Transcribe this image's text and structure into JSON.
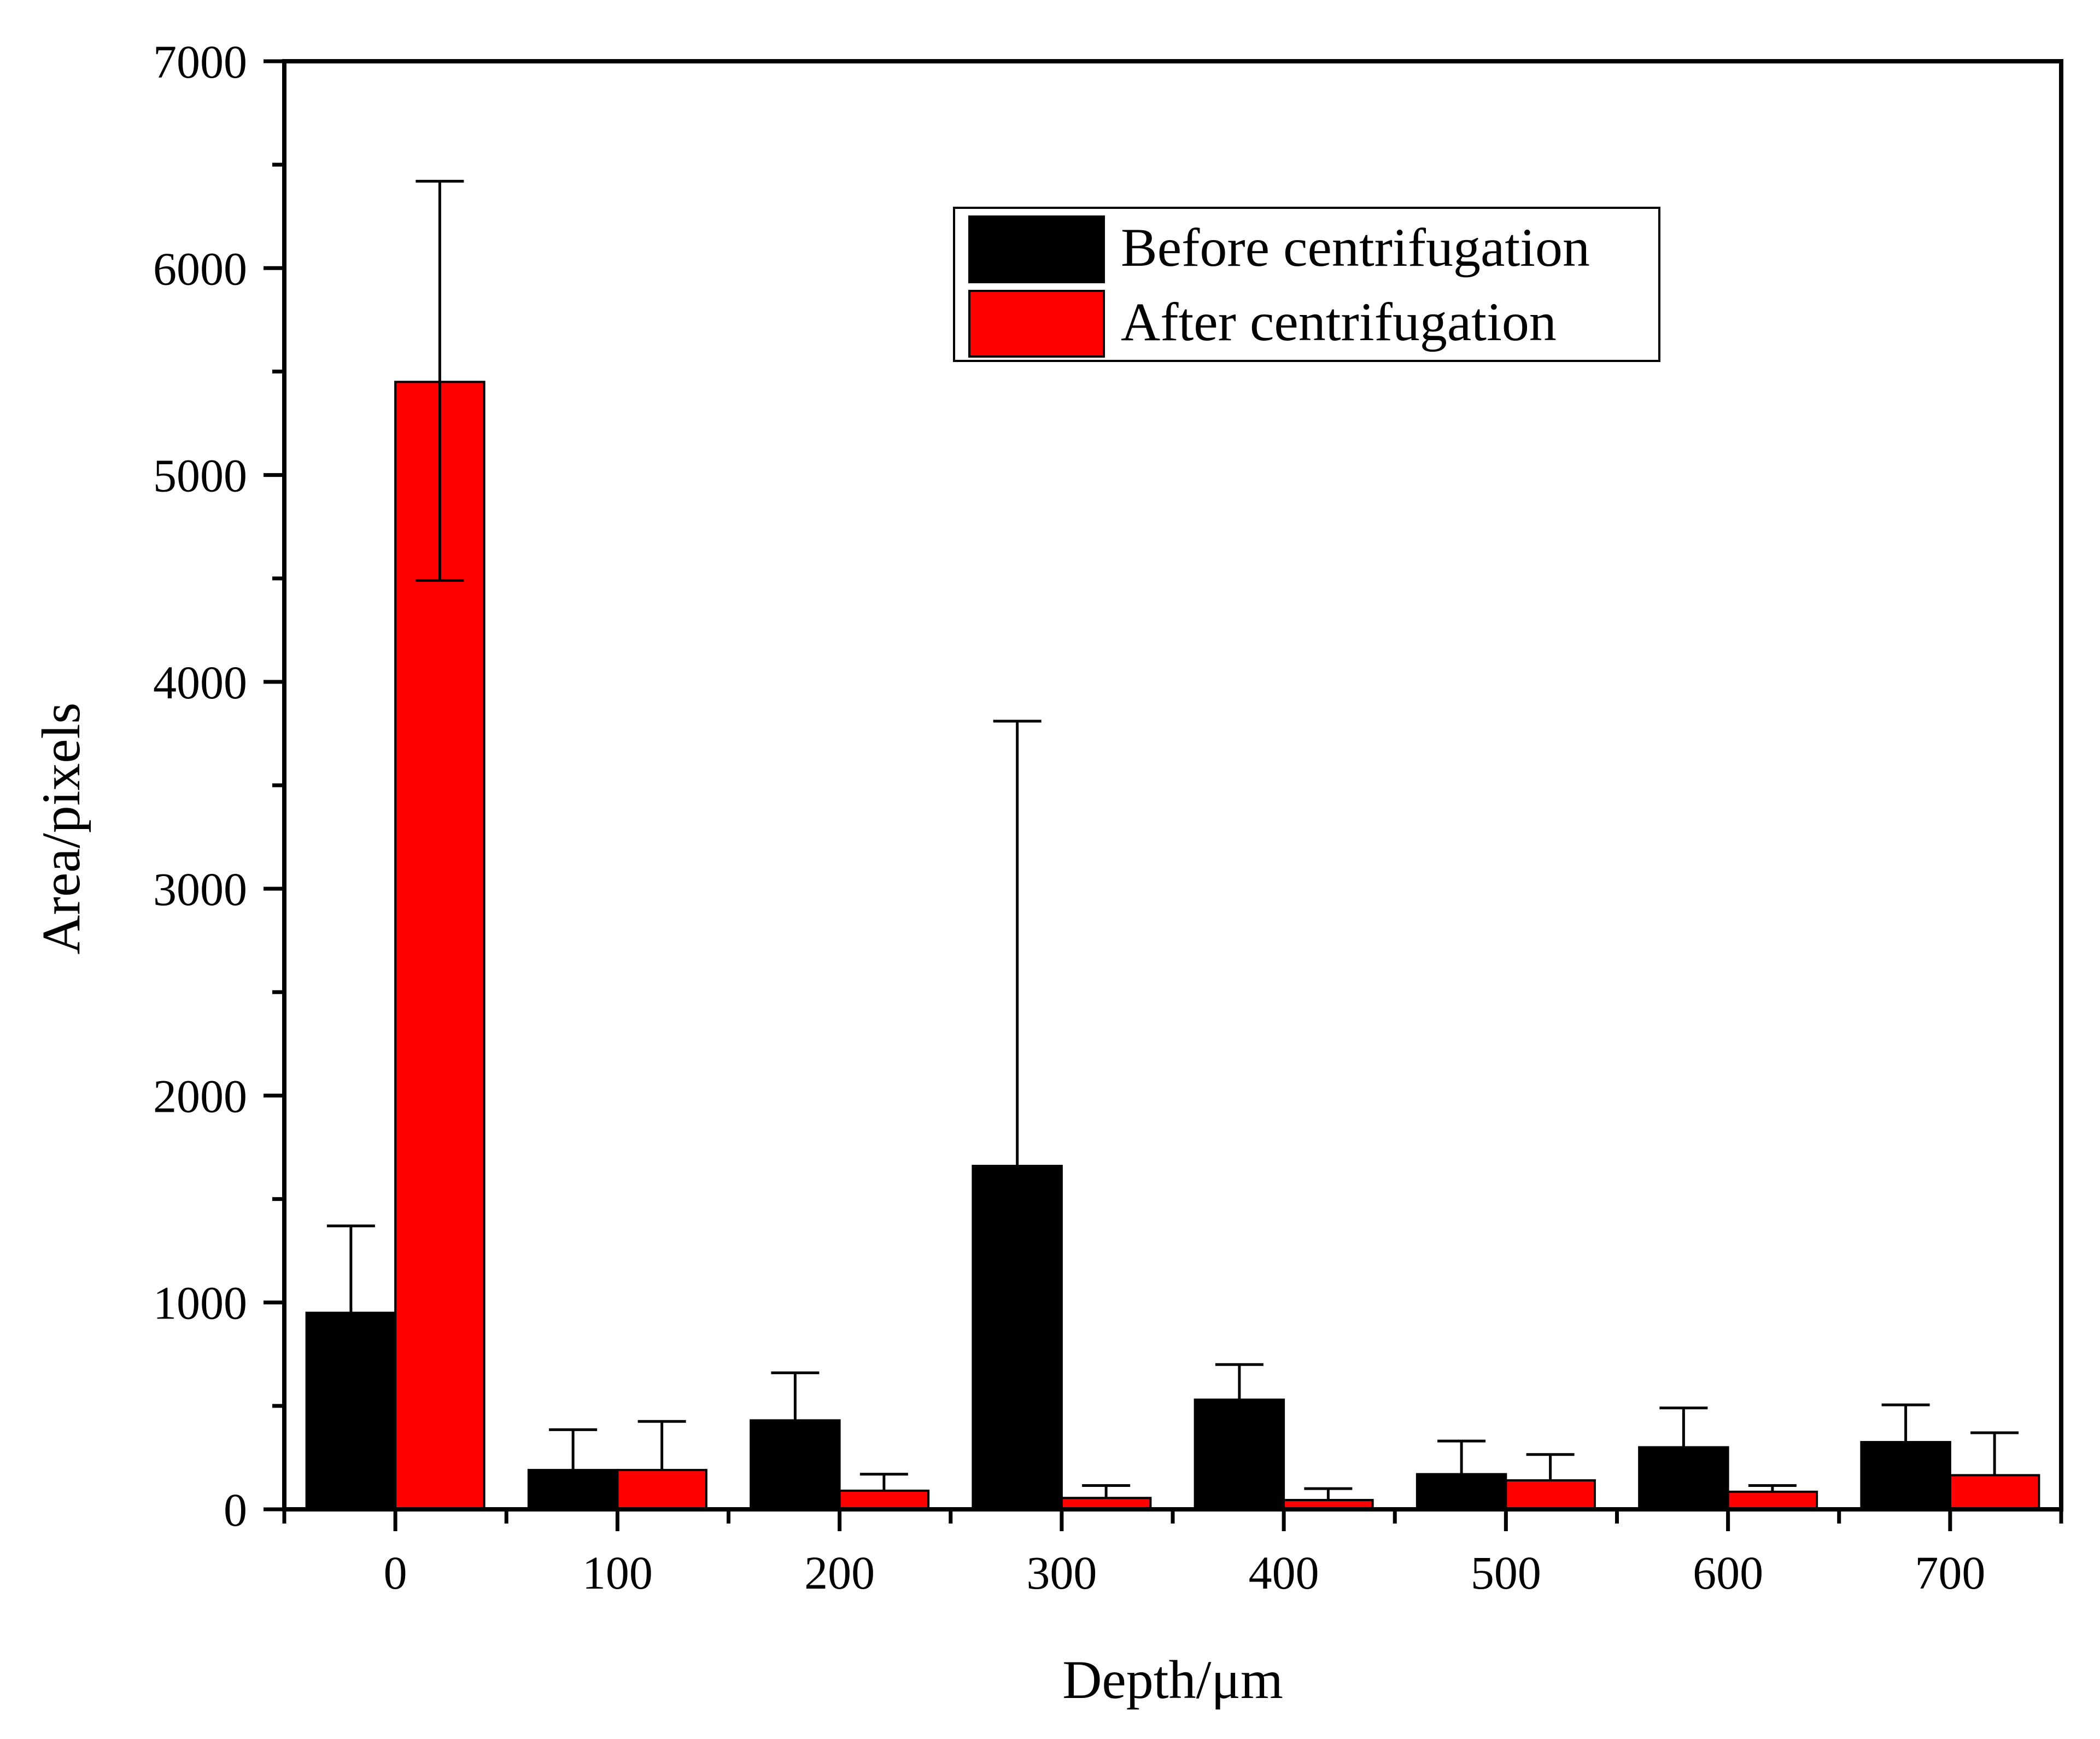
{
  "chart_data": {
    "type": "bar",
    "title": "",
    "xlabel": "Depth/μm",
    "ylabel": "Area/pixels",
    "categories": [
      "0",
      "100",
      "200",
      "300",
      "400",
      "500",
      "600",
      "700"
    ],
    "series": [
      {
        "name": "Before centrifugation",
        "color": "#000000",
        "values": [
          950,
          190,
          430,
          1660,
          530,
          170,
          300,
          325
        ],
        "error_upper": [
          1370,
          385,
          660,
          3810,
          700,
          330,
          490,
          505
        ]
      },
      {
        "name": "After centrifugation",
        "color": "#ff0000",
        "values": [
          5450,
          190,
          90,
          55,
          45,
          140,
          85,
          165
        ],
        "error_upper": [
          6420,
          425,
          170,
          115,
          100,
          265,
          115,
          370
        ],
        "error_lower": [
          4490,
          0,
          0,
          0,
          0,
          0,
          0,
          0
        ]
      }
    ],
    "ylim": [
      0,
      7000
    ],
    "yticks": [
      0,
      1000,
      2000,
      3000,
      4000,
      5000,
      6000,
      7000
    ],
    "ytick_labels": [
      "0",
      "1000",
      "2000",
      "3000",
      "4000",
      "5000",
      "6000",
      "7000"
    ],
    "grid": false,
    "legend_position": "top-right"
  }
}
